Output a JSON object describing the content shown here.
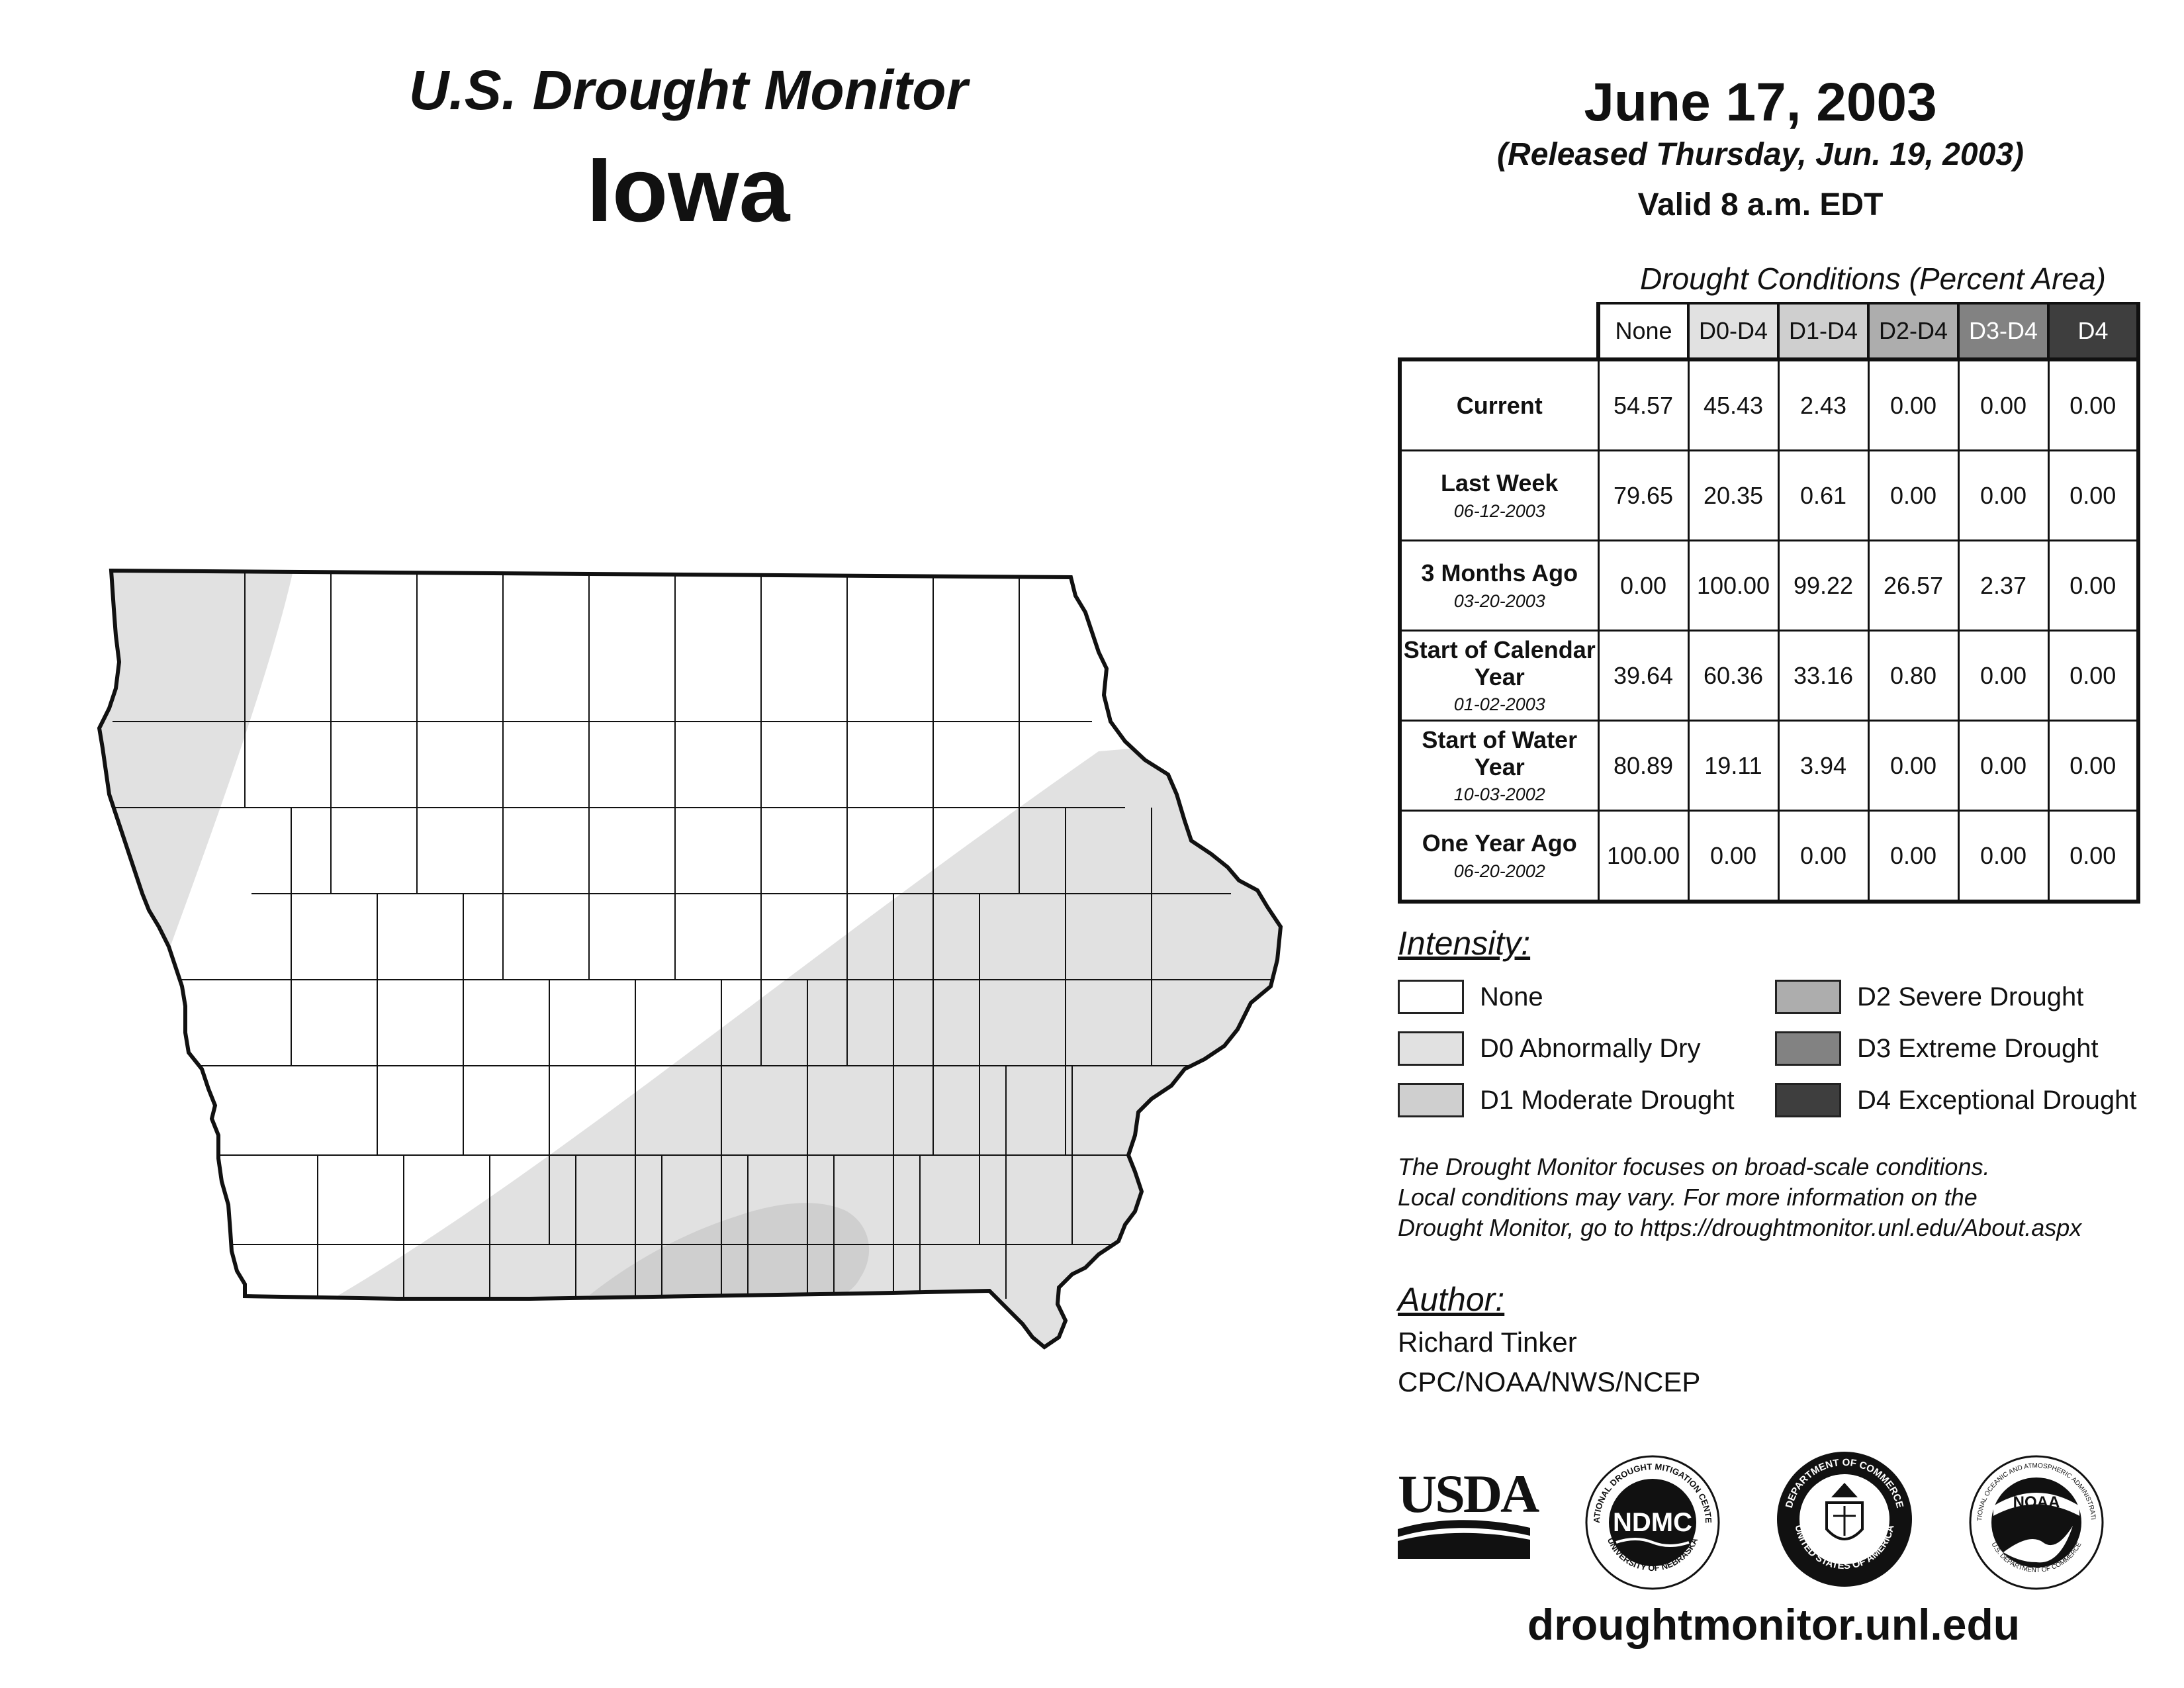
{
  "header": {
    "product_title": "U.S. Drought Monitor",
    "state": "Iowa",
    "map_date": "June 17, 2003",
    "released": "(Released Thursday, Jun. 19, 2003)",
    "valid": "Valid 8 a.m. EDT"
  },
  "table": {
    "title": "Drought Conditions (Percent Area)",
    "columns": [
      "None",
      "D0-D4",
      "D1-D4",
      "D2-D4",
      "D3-D4",
      "D4"
    ],
    "column_colors": [
      "#ffffff",
      "#e1e1e1",
      "#cfcfcf",
      "#adadad",
      "#828282",
      "#3e3e3e"
    ],
    "rows": [
      {
        "label": "Current",
        "date": "",
        "values": [
          "54.57",
          "45.43",
          "2.43",
          "0.00",
          "0.00",
          "0.00"
        ]
      },
      {
        "label": "Last Week",
        "date": "06-12-2003",
        "values": [
          "79.65",
          "20.35",
          "0.61",
          "0.00",
          "0.00",
          "0.00"
        ]
      },
      {
        "label": "3 Months Ago",
        "date": "03-20-2003",
        "values": [
          "0.00",
          "100.00",
          "99.22",
          "26.57",
          "2.37",
          "0.00"
        ]
      },
      {
        "label": "Start of Calendar Year",
        "date": "01-02-2003",
        "values": [
          "39.64",
          "60.36",
          "33.16",
          "0.80",
          "0.00",
          "0.00"
        ]
      },
      {
        "label": "Start of Water Year",
        "date": "10-03-2002",
        "values": [
          "80.89",
          "19.11",
          "3.94",
          "0.00",
          "0.00",
          "0.00"
        ]
      },
      {
        "label": "One Year Ago",
        "date": "06-20-2002",
        "values": [
          "100.00",
          "0.00",
          "0.00",
          "0.00",
          "0.00",
          "0.00"
        ]
      }
    ]
  },
  "legend": {
    "title": "Intensity:",
    "items": [
      {
        "label": "None",
        "color": "#ffffff"
      },
      {
        "label": "D0 Abnormally Dry",
        "color": "#e1e1e1"
      },
      {
        "label": "D1 Moderate Drought",
        "color": "#cfcfcf"
      },
      {
        "label": "D2 Severe Drought",
        "color": "#adadad"
      },
      {
        "label": "D3 Extreme Drought",
        "color": "#828282"
      },
      {
        "label": "D4 Exceptional Drought",
        "color": "#3e3e3e"
      }
    ]
  },
  "note": {
    "lines": [
      "The Drought Monitor focuses on broad-scale conditions.",
      "Local conditions may vary. For more information on the",
      "Drought Monitor, go to https://droughtmonitor.unl.edu/About.aspx"
    ]
  },
  "author": {
    "title": "Author:",
    "name": "Richard Tinker",
    "org": "CPC/NOAA/NWS/NCEP"
  },
  "logos": {
    "usda": "USDA",
    "ndmc": "NDMC",
    "ndmc_ring_top": "NATIONAL DROUGHT MITIGATION CENTER",
    "ndmc_ring_bottom": "UNIVERSITY OF NEBRASKA",
    "doc_ring": "DEPARTMENT OF COMMERCE",
    "doc_ring_bottom": "UNITED STATES OF AMERICA",
    "noaa": "NOAA",
    "noaa_ring_top": "NATIONAL OCEANIC AND ATMOSPHERIC ADMINISTRATION",
    "noaa_ring_bottom": "U.S. DEPARTMENT OF COMMERCE"
  },
  "website": "droughtmonitor.unl.edu"
}
